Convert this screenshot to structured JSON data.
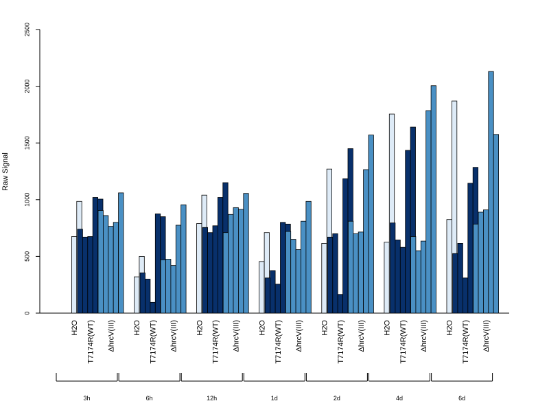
{
  "chart_data": {
    "type": "bar",
    "ylabel": "Raw Signal",
    "ylim": [
      0,
      2500
    ],
    "yticks": [
      "0",
      "500",
      "1000",
      "1500",
      "2000",
      "2500"
    ],
    "grid": false,
    "legend": "none",
    "treatment_labels": [
      "H2O",
      "T7174R(WT)",
      "ΔhrcV(III)"
    ],
    "colors": {
      "H2O": "#deebf7",
      "T7174R(WT)": "#08306b",
      "ΔhrcV(III)": "#4a90c4"
    },
    "groups": [
      {
        "time": "3h",
        "values": {
          "H2O": [
            0,
            675,
            985
          ],
          "T7174R(WT)": [
            740,
            670,
            675,
            1020,
            1005
          ],
          "ΔhrcV(III)": [
            905,
            860,
            765,
            800,
            1060
          ]
        }
      },
      {
        "time": "6h",
        "values": {
          "H2O": [
            0,
            320,
            500
          ],
          "T7174R(WT)": [
            355,
            300,
            95,
            875,
            850
          ],
          "ΔhrcV(III)": [
            470,
            475,
            420,
            775,
            955
          ]
        }
      },
      {
        "time": "12h",
        "values": {
          "H2O": [
            0,
            790,
            1040
          ],
          "T7174R(WT)": [
            755,
            710,
            770,
            1020,
            1150
          ],
          "ΔhrcV(III)": [
            710,
            870,
            930,
            915,
            1055
          ]
        }
      },
      {
        "time": "1d",
        "values": {
          "H2O": [
            0,
            455,
            710
          ],
          "T7174R(WT)": [
            310,
            375,
            255,
            800,
            785
          ],
          "ΔhrcV(III)": [
            720,
            650,
            560,
            810,
            985
          ]
        }
      },
      {
        "time": "2d",
        "values": {
          "H2O": [
            0,
            615,
            1270
          ],
          "T7174R(WT)": [
            670,
            700,
            165,
            1185,
            1450
          ],
          "ΔhrcV(III)": [
            810,
            700,
            715,
            1265,
            1570
          ]
        }
      },
      {
        "time": "4d",
        "values": {
          "H2O": [
            0,
            625,
            1755
          ],
          "T7174R(WT)": [
            795,
            645,
            580,
            1435,
            1640
          ],
          "ΔhrcV(III)": [
            675,
            550,
            635,
            1785,
            2005
          ]
        }
      },
      {
        "time": "6d",
        "values": {
          "H2O": [
            0,
            825,
            1870
          ],
          "T7174R(WT)": [
            525,
            615,
            310,
            1145,
            1285
          ],
          "ΔhrcV(III)": [
            785,
            890,
            910,
            2130,
            1575
          ]
        }
      }
    ]
  }
}
